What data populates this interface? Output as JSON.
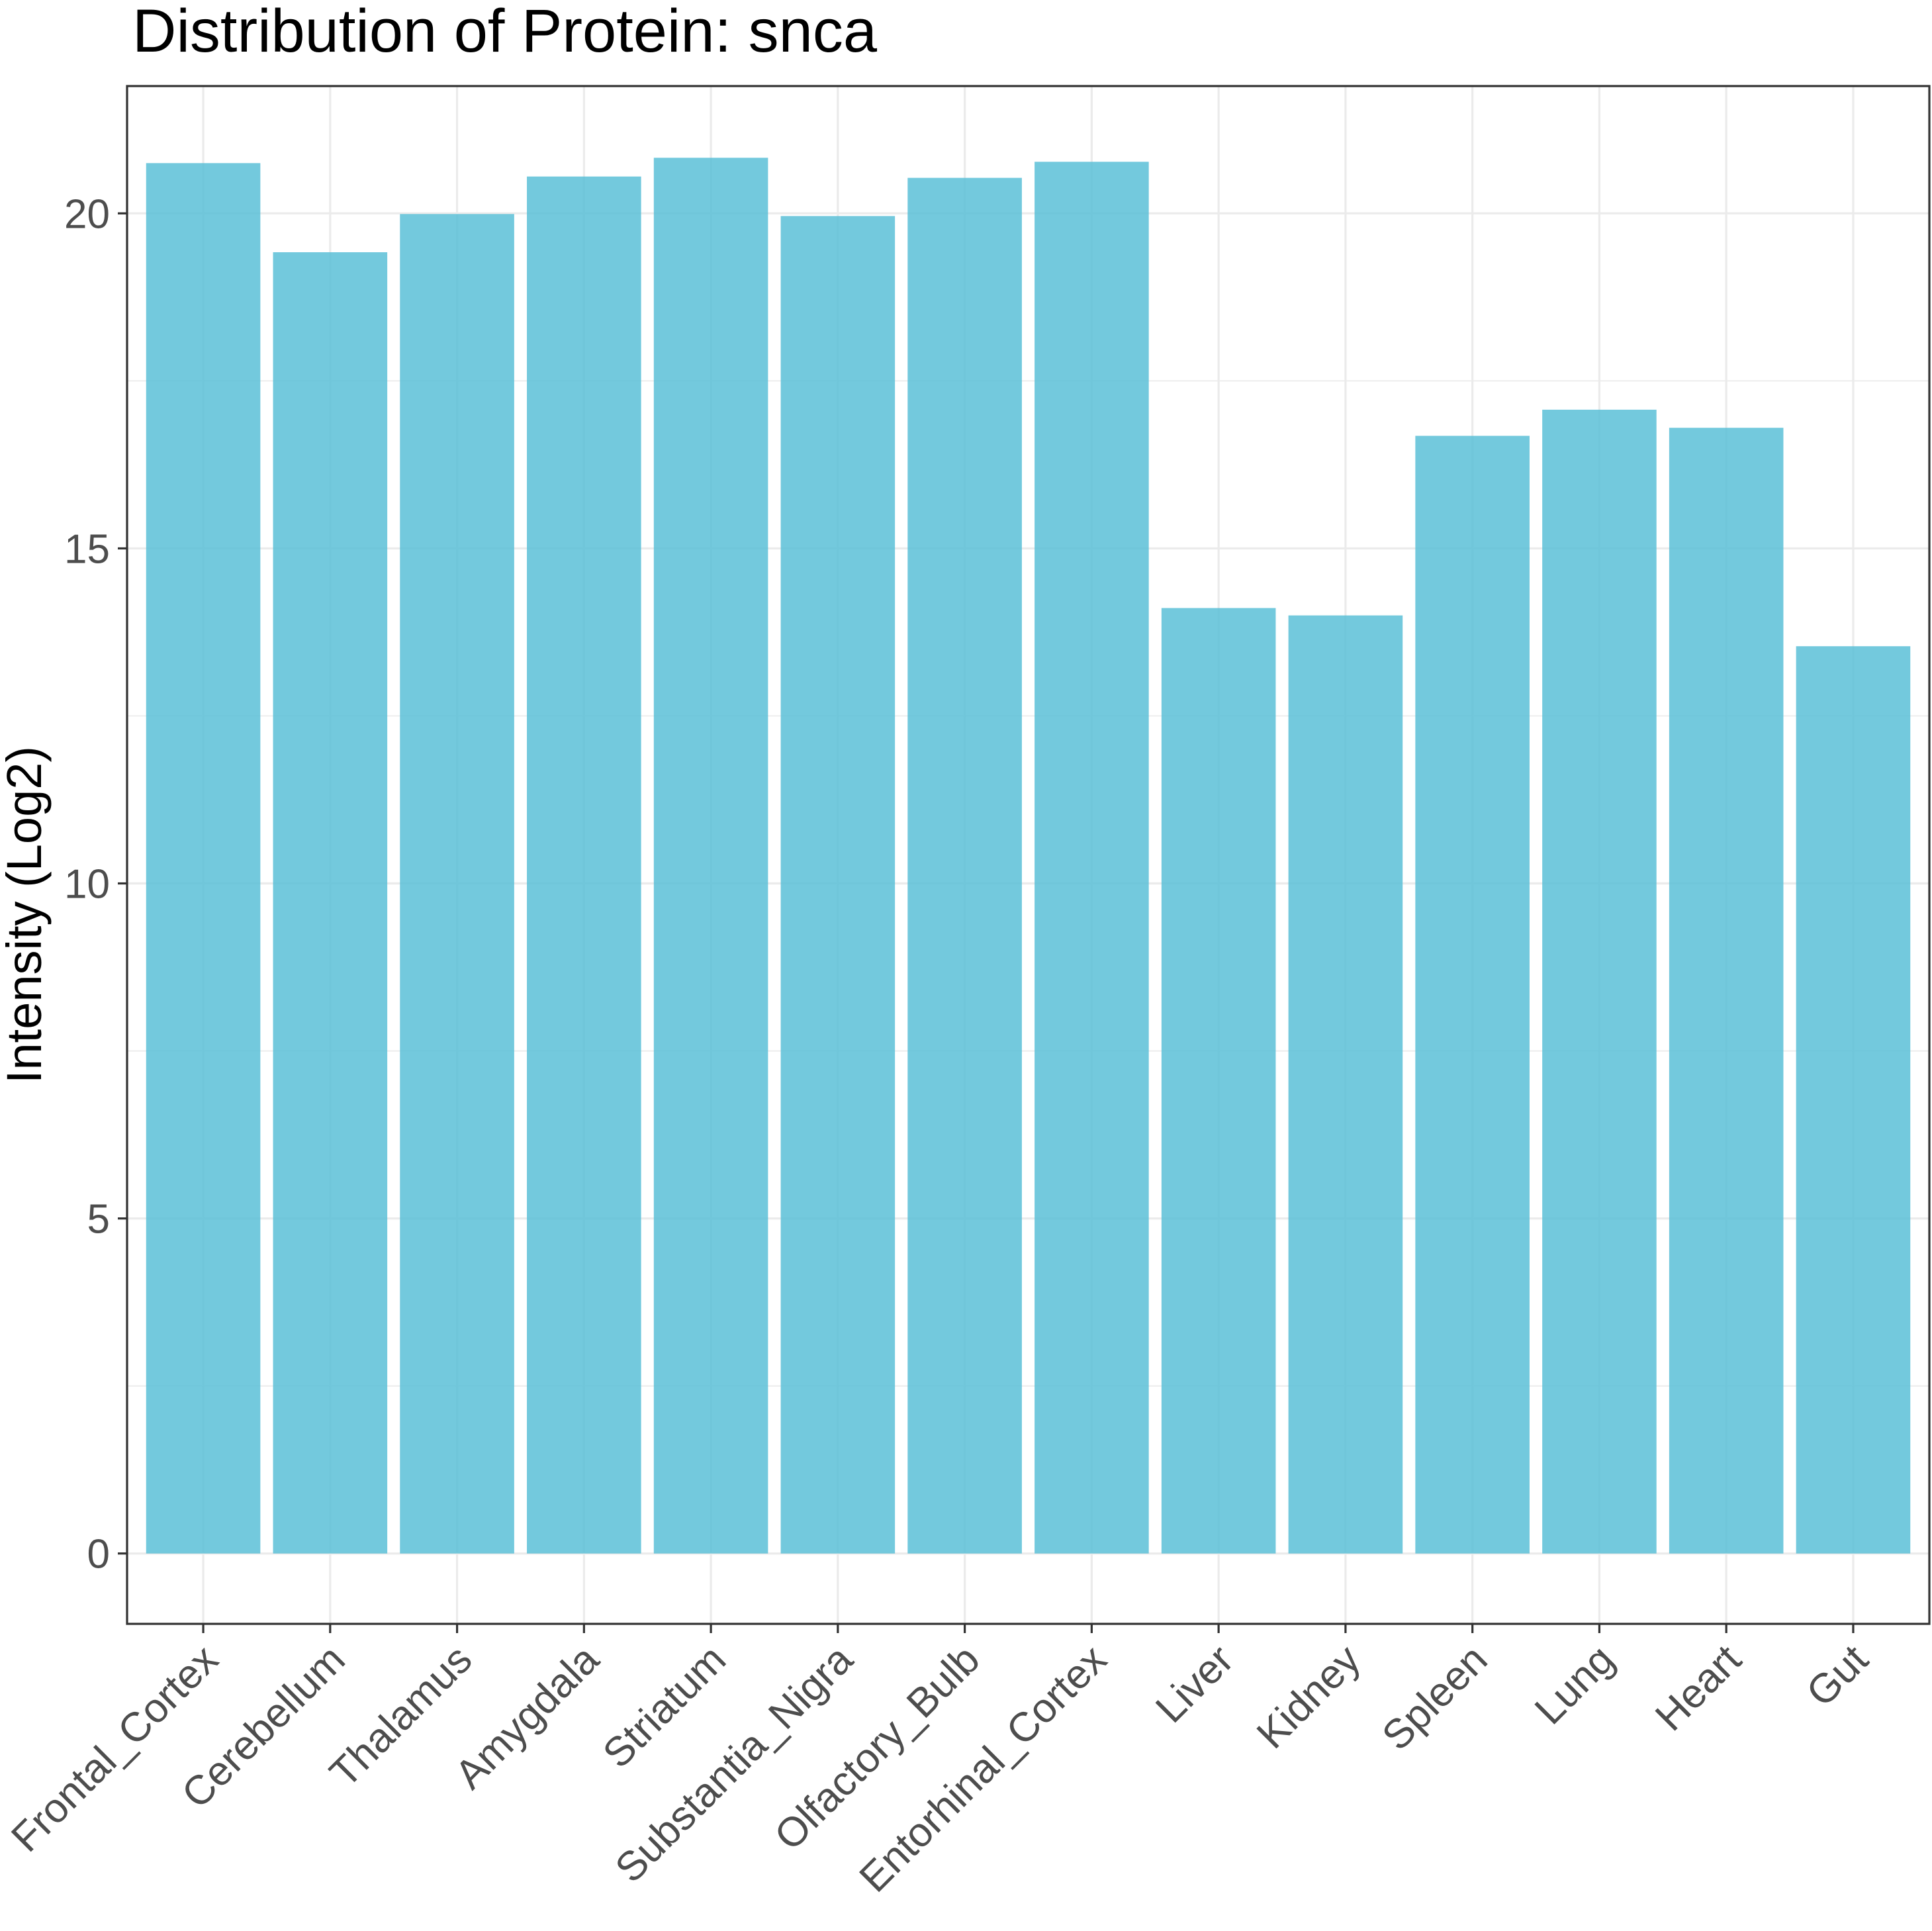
{
  "chart_data": {
    "type": "bar",
    "title": "Distribution of Protein: snca",
    "xlabel": "",
    "ylabel": "Intensity (Log2)",
    "categories": [
      "Frontal_Cortex",
      "Cerebellum",
      "Thalamus",
      "Amygdala",
      "Striatum",
      "Substantia_Nigra",
      "Olfactory_Bulb",
      "Entorhinal_Cortex",
      "Liver",
      "Kidney",
      "Spleen",
      "Lung",
      "Heart",
      "Gut"
    ],
    "values": [
      20.75,
      19.42,
      19.99,
      20.55,
      20.83,
      19.96,
      20.53,
      20.77,
      14.11,
      14.0,
      16.68,
      17.07,
      16.8,
      13.54
    ],
    "ylim": [
      -1.05,
      21.9
    ],
    "yticks": [
      0,
      5,
      10,
      15,
      20
    ],
    "bar_color": "#5bc0d7",
    "grid": true,
    "legend": "none"
  }
}
